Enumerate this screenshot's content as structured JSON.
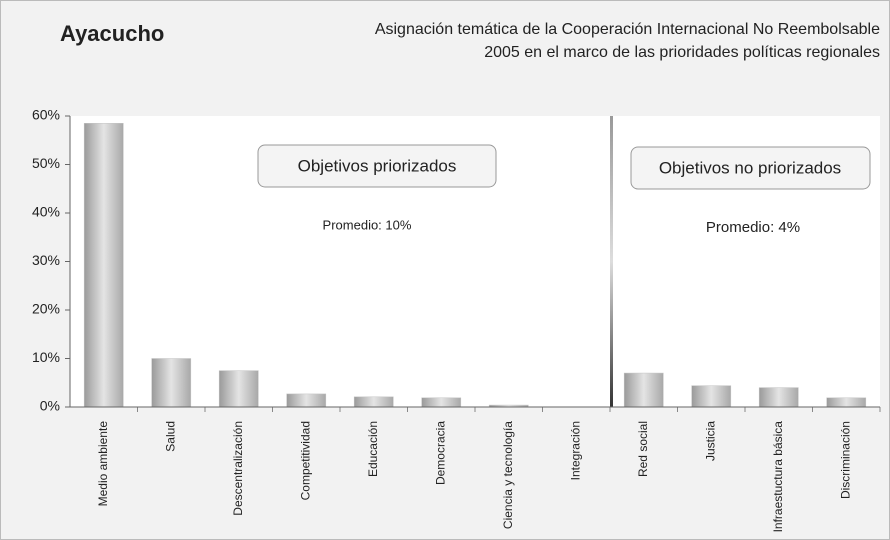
{
  "chart_data": {
    "type": "bar",
    "title": "Ayacucho",
    "subtitle": [
      "Asignación temática de la Cooperación Internacional No Reembolsable",
      "2005 en el marco de las prioridades políticas regionales"
    ],
    "categories": [
      "Medio ambiente",
      "Salud",
      "Descentralización",
      "Competitividad",
      "Educación",
      "Democracia",
      "Ciencia y tecnología",
      "Integración",
      "Red social",
      "Justicia",
      "Infraestuctura básica",
      "Discriminación"
    ],
    "values": [
      58.5,
      10,
      7.5,
      2.7,
      2.1,
      1.9,
      0.4,
      0,
      7,
      4.4,
      4,
      1.9
    ],
    "color": "#c4c4c4",
    "ylim": [
      0,
      60
    ],
    "yticks": [
      {
        "value": 0,
        "label": "0%"
      },
      {
        "value": 10,
        "label": "10%"
      },
      {
        "value": 20,
        "label": "20%"
      },
      {
        "value": 30,
        "label": "30%"
      },
      {
        "value": 40,
        "label": "40%"
      },
      {
        "value": 50,
        "label": "50%"
      },
      {
        "value": 60,
        "label": "60%"
      }
    ],
    "annotations": [
      {
        "label": "Objetivos priorizados",
        "text": "Promedio: 10%"
      },
      {
        "label": "Objetivos no priorizados",
        "text": "Promedio: 4%"
      }
    ]
  }
}
